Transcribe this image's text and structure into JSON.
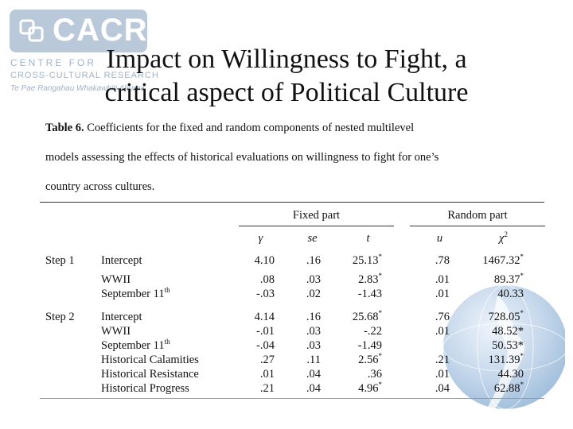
{
  "logo": {
    "text": "CACR",
    "line1": "CENTRE  FOR",
    "line2": "CROSS-CULTURAL RESEARCH",
    "line3": "Te Pae Rangahau Whakawhiti Ahurea"
  },
  "title": {
    "line1": "Impact on Willingness to Fight, a",
    "line2": "critical aspect of Political Culture"
  },
  "caption": {
    "label": "Table 6.",
    "line1": "Coefficients for the fixed and random components of nested multilevel",
    "line2": "models assessing the effects of historical evaluations on willingness to fight for one’s",
    "line3": "country across cultures."
  },
  "table": {
    "group_fixed": "Fixed part",
    "group_random": "Random part",
    "col_gamma": "γ",
    "col_se": "se",
    "col_t": "t",
    "col_u": "u",
    "col_chi": "χ",
    "col_chi_sup": "2",
    "rows": [
      {
        "step": "Step 1",
        "label": "Intercept",
        "label_sup": "",
        "gamma": "4.10",
        "se": ".16",
        "t": "25.13",
        "t_sup": "*",
        "u": ".78",
        "chi": "1467.32",
        "chi_sup": "*"
      },
      {
        "step": "",
        "label": "WWII",
        "label_sup": "",
        "gamma": ".08",
        "se": ".03",
        "t": "2.83",
        "t_sup": "*",
        "u": ".01",
        "chi": "89.37",
        "chi_sup": "*"
      },
      {
        "step": "",
        "label": "September 11",
        "label_sup": "th",
        "gamma": "-.03",
        "se": ".02",
        "t": "-1.43",
        "t_sup": "",
        "u": ".01",
        "chi": "40.33",
        "chi_sup": ""
      },
      {
        "step": "Step 2",
        "label": "Intercept",
        "label_sup": "",
        "gamma": "4.14",
        "se": ".16",
        "t": "25.68",
        "t_sup": "*",
        "u": ".76",
        "chi": "728.05",
        "chi_sup": "*"
      },
      {
        "step": "",
        "label": "WWII",
        "label_sup": "",
        "gamma": "-.01",
        "se": ".03",
        "t": "-.22",
        "t_sup": "",
        "u": ".01",
        "chi": "48.52*",
        "chi_sup": ""
      },
      {
        "step": "",
        "label": "September 11",
        "label_sup": "th",
        "gamma": "-.04",
        "se": ".03",
        "t": "-1.49",
        "t_sup": "",
        "u": "",
        "chi": "50.53*",
        "chi_sup": ""
      },
      {
        "step": "",
        "label": "Historical Calamities",
        "label_sup": "",
        "gamma": ".27",
        "se": ".11",
        "t": "2.56",
        "t_sup": "*",
        "u": ".21",
        "chi": "131.39",
        "chi_sup": "*"
      },
      {
        "step": "",
        "label": "Historical Resistance",
        "label_sup": "",
        "gamma": ".01",
        "se": ".04",
        "t": ".36",
        "t_sup": "",
        "u": ".01",
        "chi": "44.30",
        "chi_sup": ""
      },
      {
        "step": "",
        "label": "Historical Progress",
        "label_sup": "",
        "gamma": ".21",
        "se": ".04",
        "t": "4.96",
        "t_sup": "*",
        "u": ".04",
        "chi": "62.88",
        "chi_sup": "*"
      }
    ]
  }
}
